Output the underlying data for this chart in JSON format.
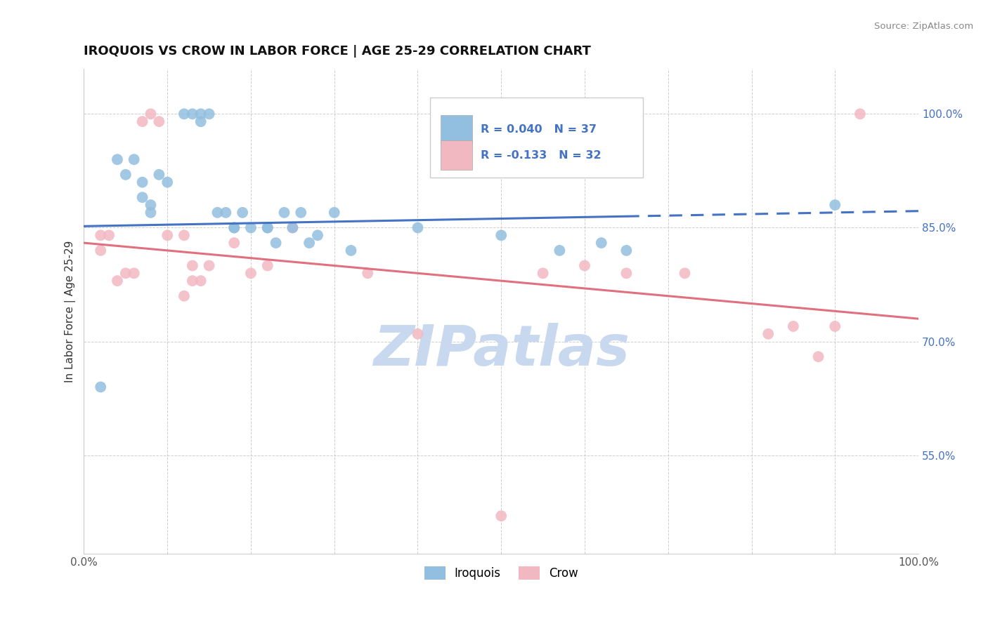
{
  "title": "IROQUOIS VS CROW IN LABOR FORCE | AGE 25-29 CORRELATION CHART",
  "source": "Source: ZipAtlas.com",
  "ylabel": "In Labor Force | Age 25-29",
  "xlim": [
    0.0,
    1.0
  ],
  "ylim": [
    0.42,
    1.06
  ],
  "yticks": [
    0.55,
    0.7,
    0.85,
    1.0
  ],
  "ytick_labels": [
    "55.0%",
    "70.0%",
    "85.0%",
    "100.0%"
  ],
  "xticks": [
    0.0,
    0.1,
    0.2,
    0.3,
    0.4,
    0.5,
    0.6,
    0.7,
    0.8,
    0.9,
    1.0
  ],
  "xtick_labels": [
    "0.0%",
    "",
    "",
    "",
    "",
    "",
    "",
    "",
    "",
    "",
    "100.0%"
  ],
  "iroquois_x": [
    0.02,
    0.04,
    0.05,
    0.06,
    0.07,
    0.07,
    0.08,
    0.08,
    0.09,
    0.1,
    0.12,
    0.13,
    0.14,
    0.14,
    0.15,
    0.16,
    0.17,
    0.18,
    0.19,
    0.2,
    0.22,
    0.23,
    0.25,
    0.26,
    0.27,
    0.28,
    0.32,
    0.4,
    0.5,
    0.57,
    0.62,
    0.65,
    0.3,
    0.18,
    0.22,
    0.9,
    0.24
  ],
  "iroquois_y": [
    0.64,
    0.94,
    0.92,
    0.94,
    0.91,
    0.89,
    0.88,
    0.87,
    0.92,
    0.91,
    1.0,
    1.0,
    1.0,
    0.99,
    1.0,
    0.87,
    0.87,
    0.85,
    0.87,
    0.85,
    0.85,
    0.83,
    0.85,
    0.87,
    0.83,
    0.84,
    0.82,
    0.85,
    0.84,
    0.82,
    0.83,
    0.82,
    0.87,
    0.85,
    0.85,
    0.88,
    0.87
  ],
  "crow_x": [
    0.02,
    0.02,
    0.03,
    0.04,
    0.05,
    0.06,
    0.07,
    0.08,
    0.09,
    0.1,
    0.12,
    0.12,
    0.13,
    0.13,
    0.14,
    0.15,
    0.18,
    0.2,
    0.22,
    0.25,
    0.34,
    0.4,
    0.55,
    0.6,
    0.65,
    0.72,
    0.82,
    0.85,
    0.88,
    0.9,
    0.93,
    0.5
  ],
  "crow_y": [
    0.82,
    0.84,
    0.84,
    0.78,
    0.79,
    0.79,
    0.99,
    1.0,
    0.99,
    0.84,
    0.84,
    0.76,
    0.8,
    0.78,
    0.78,
    0.8,
    0.83,
    0.79,
    0.8,
    0.85,
    0.79,
    0.71,
    0.79,
    0.8,
    0.79,
    0.79,
    0.71,
    0.72,
    0.68,
    0.72,
    1.0,
    0.47
  ],
  "blue_color": "#92BFE0",
  "pink_color": "#F2B8C2",
  "blue_line_color": "#4472C4",
  "pink_line_color": "#E07080",
  "watermark_color": "#C8D8EE",
  "background_color": "#FFFFFF",
  "grid_color": "#BBBBBB",
  "blue_line_solid_end": 0.65,
  "blue_line_start_y": 0.852,
  "blue_line_end_y": 0.872,
  "pink_line_start_y": 0.83,
  "pink_line_end_y": 0.73
}
